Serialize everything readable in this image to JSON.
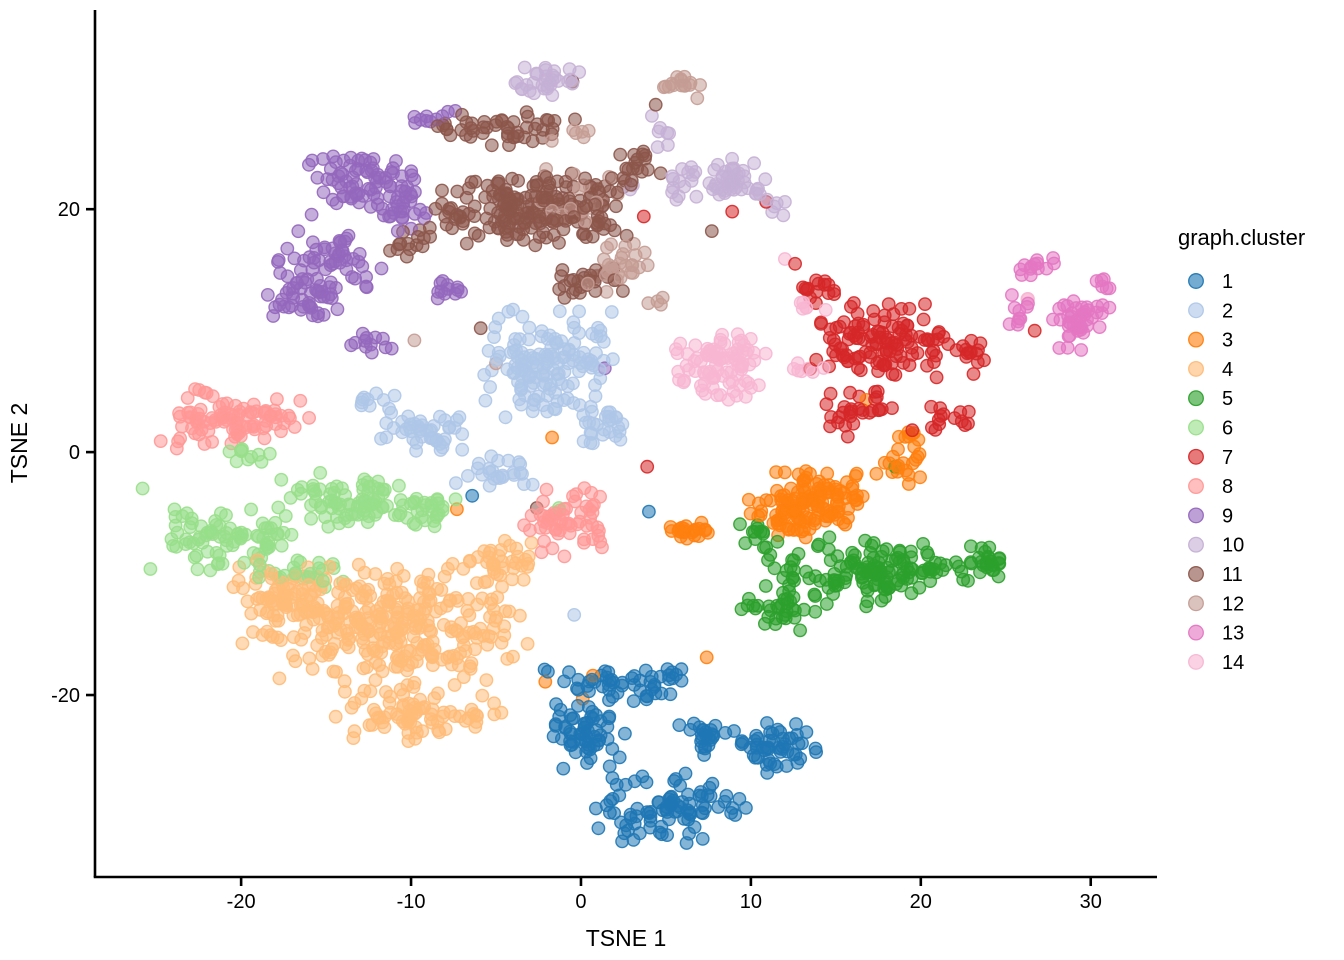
{
  "chart_data": {
    "type": "scatter",
    "title": "",
    "xlabel": "TSNE 1",
    "ylabel": "TSNE 2",
    "legend_title": "graph.cluster",
    "legend_position": "right",
    "grid": false,
    "xlim": [
      -28.6,
      33.9
    ],
    "ylim": [
      -34.9,
      36.4
    ],
    "x_ticks": [
      -20,
      -10,
      0,
      10,
      20,
      30
    ],
    "y_ticks": [
      -20,
      0,
      20
    ],
    "marker": {
      "radius": 6.2,
      "fill_opacity": 0.55,
      "stroke_opacity": 0.9,
      "stroke_width": 1.4
    },
    "series": [
      {
        "name": "1",
        "color": "#1F77B4",
        "blobs": [
          {
            "cx": 2.5,
            "cy": -19.3,
            "rx": 4.8,
            "ry": 1.8,
            "n": 55,
            "rot": 0
          },
          {
            "cx": 11.2,
            "cy": -24.3,
            "rx": 3.0,
            "ry": 2.6,
            "n": 50,
            "rot": 0
          },
          {
            "cx": 4.8,
            "cy": -29.3,
            "rx": 5.2,
            "ry": 3.0,
            "n": 90,
            "rot": 0
          },
          {
            "cx": 0.3,
            "cy": -23.5,
            "rx": 2.6,
            "ry": 3.2,
            "n": 60,
            "rot": 0
          },
          {
            "cx": 7.5,
            "cy": -23.5,
            "rx": 2.0,
            "ry": 1.6,
            "n": 25,
            "rot": 0
          }
        ],
        "outliers": [
          [
            13.8,
            -24.4
          ],
          [
            4.0,
            -4.9
          ],
          [
            -6.4,
            -3.6
          ]
        ]
      },
      {
        "name": "2",
        "color": "#AEC7E8",
        "blobs": [
          {
            "cx": -2.0,
            "cy": 7.5,
            "rx": 4.2,
            "ry": 5.5,
            "n": 150,
            "rot": 0
          },
          {
            "cx": -9.3,
            "cy": 1.6,
            "rx": 3.2,
            "ry": 2.0,
            "n": 45,
            "rot": 0
          },
          {
            "cx": -4.8,
            "cy": -1.6,
            "rx": 2.6,
            "ry": 1.4,
            "n": 25,
            "rot": 0
          },
          {
            "cx": -11.8,
            "cy": 4.3,
            "rx": 1.4,
            "ry": 1.0,
            "n": 10,
            "rot": 0
          },
          {
            "cx": 1.5,
            "cy": 2.0,
            "rx": 2.0,
            "ry": 2.0,
            "n": 25,
            "rot": 0
          }
        ],
        "outliers": [
          [
            -0.4,
            -13.4
          ]
        ]
      },
      {
        "name": "3",
        "color": "#FF7F0E",
        "blobs": [
          {
            "cx": 13.3,
            "cy": -4.3,
            "rx": 3.8,
            "ry": 3.0,
            "n": 140,
            "rot": 0
          },
          {
            "cx": 6.3,
            "cy": -6.6,
            "rx": 1.6,
            "ry": 0.9,
            "n": 22,
            "rot": 0
          },
          {
            "cx": 18.8,
            "cy": -1.2,
            "rx": 1.6,
            "ry": 1.6,
            "n": 18,
            "rot": 0
          },
          {
            "cx": 19.3,
            "cy": 1.2,
            "rx": 1.2,
            "ry": 0.9,
            "n": 8,
            "rot": 0
          }
        ],
        "outliers": [
          [
            -1.7,
            1.2
          ],
          [
            7.4,
            -16.9
          ],
          [
            -2.1,
            -18.9
          ],
          [
            0.7,
            -18.4
          ],
          [
            0.1,
            -20.3
          ],
          [
            -7.3,
            -4.7
          ],
          [
            16.8,
            4.3
          ]
        ]
      },
      {
        "name": "4",
        "color": "#FFBB78",
        "blobs": [
          {
            "cx": -11.5,
            "cy": -14.0,
            "rx": 8.8,
            "ry": 5.5,
            "n": 330,
            "rot": 0
          },
          {
            "cx": -9.5,
            "cy": -21.5,
            "rx": 5.0,
            "ry": 2.6,
            "n": 80,
            "rot": 0
          },
          {
            "cx": -17.5,
            "cy": -11.5,
            "rx": 3.5,
            "ry": 2.5,
            "n": 50,
            "rot": 0
          },
          {
            "cx": -4.5,
            "cy": -9.0,
            "rx": 2.5,
            "ry": 2.0,
            "n": 30,
            "rot": 0
          }
        ],
        "outliers": []
      },
      {
        "name": "5",
        "color": "#2CA02C",
        "blobs": [
          {
            "cx": 17.0,
            "cy": -9.8,
            "rx": 6.8,
            "ry": 3.0,
            "n": 150,
            "rot": 0
          },
          {
            "cx": 11.5,
            "cy": -13.2,
            "rx": 2.6,
            "ry": 1.6,
            "n": 30,
            "rot": 0
          },
          {
            "cx": 23.8,
            "cy": -9.0,
            "rx": 1.8,
            "ry": 2.0,
            "n": 25,
            "rot": 0
          },
          {
            "cx": 10.0,
            "cy": -7.0,
            "rx": 1.4,
            "ry": 1.2,
            "n": 12,
            "rot": 0
          }
        ],
        "outliers": [
          [
            18.5,
            -1.2
          ]
        ]
      },
      {
        "name": "6",
        "color": "#98DF8A",
        "blobs": [
          {
            "cx": -21.0,
            "cy": -7.3,
            "rx": 4.6,
            "ry": 3.0,
            "n": 85,
            "rot": 0
          },
          {
            "cx": -13.8,
            "cy": -4.2,
            "rx": 4.6,
            "ry": 2.4,
            "n": 85,
            "rot": -10
          },
          {
            "cx": -8.7,
            "cy": -5.0,
            "rx": 2.0,
            "ry": 1.6,
            "n": 25,
            "rot": 0
          },
          {
            "cx": -16.5,
            "cy": -9.8,
            "rx": 3.0,
            "ry": 1.4,
            "n": 22,
            "rot": 0
          },
          {
            "cx": -19.0,
            "cy": -0.2,
            "rx": 2.2,
            "ry": 0.8,
            "n": 10,
            "rot": 0
          }
        ],
        "outliers": [
          [
            -1.3,
            -4.6
          ],
          [
            -25.8,
            -3.0
          ]
        ]
      },
      {
        "name": "7",
        "color": "#D62728",
        "blobs": [
          {
            "cx": 17.8,
            "cy": 9.2,
            "rx": 4.6,
            "ry": 3.4,
            "n": 120,
            "rot": 0
          },
          {
            "cx": 14.2,
            "cy": 13.6,
            "rx": 2.2,
            "ry": 0.9,
            "n": 14,
            "rot": 0
          },
          {
            "cx": 16.3,
            "cy": 3.6,
            "rx": 2.6,
            "ry": 1.9,
            "n": 30,
            "rot": 25
          },
          {
            "cx": 21.8,
            "cy": 2.6,
            "rx": 1.5,
            "ry": 1.5,
            "n": 14,
            "rot": 0
          },
          {
            "cx": 22.8,
            "cy": 8.0,
            "rx": 1.2,
            "ry": 2.2,
            "n": 14,
            "rot": 0
          }
        ],
        "outliers": [
          [
            3.9,
            -1.2
          ],
          [
            3.7,
            19.4
          ],
          [
            8.9,
            19.8
          ],
          [
            10.9,
            20.6
          ],
          [
            26.7,
            10.0
          ],
          [
            19.5,
            1.8
          ],
          [
            12.6,
            15.5
          ]
        ]
      },
      {
        "name": "8",
        "color": "#FF9896",
        "blobs": [
          {
            "cx": -20.3,
            "cy": 2.4,
            "rx": 4.8,
            "ry": 2.0,
            "n": 90,
            "rot": 8
          },
          {
            "cx": -0.9,
            "cy": -5.8,
            "rx": 2.7,
            "ry": 3.4,
            "n": 60,
            "rot": 0
          },
          {
            "cx": -22.5,
            "cy": 4.8,
            "rx": 1.2,
            "ry": 0.7,
            "n": 6,
            "rot": 0
          }
        ],
        "outliers": []
      },
      {
        "name": "9",
        "color": "#9467BD",
        "blobs": [
          {
            "cx": -13.0,
            "cy": 22.3,
            "rx": 3.4,
            "ry": 3.2,
            "n": 70,
            "rot": 0
          },
          {
            "cx": -14.8,
            "cy": 15.8,
            "rx": 3.4,
            "ry": 2.6,
            "n": 55,
            "rot": 0
          },
          {
            "cx": -16.3,
            "cy": 12.5,
            "rx": 2.6,
            "ry": 2.0,
            "n": 40,
            "rot": 0
          },
          {
            "cx": -10.3,
            "cy": 20.5,
            "rx": 1.6,
            "ry": 3.4,
            "n": 30,
            "rot": 0
          },
          {
            "cx": -8.0,
            "cy": 13.5,
            "rx": 1.0,
            "ry": 1.0,
            "n": 12,
            "rot": 0
          },
          {
            "cx": -8.6,
            "cy": 27.6,
            "rx": 1.4,
            "ry": 0.8,
            "n": 10,
            "rot": 0
          },
          {
            "cx": -12.3,
            "cy": 9.0,
            "rx": 1.4,
            "ry": 1.4,
            "n": 12,
            "rot": 0
          }
        ],
        "outliers": [
          [
            1.4,
            6.9
          ]
        ]
      },
      {
        "name": "10",
        "color": "#C5B0D5",
        "blobs": [
          {
            "cx": 8.3,
            "cy": 22.3,
            "rx": 3.3,
            "ry": 2.0,
            "n": 60,
            "rot": 0
          },
          {
            "cx": -1.9,
            "cy": 30.6,
            "rx": 2.4,
            "ry": 1.5,
            "n": 32,
            "rot": 0
          },
          {
            "cx": 4.6,
            "cy": 26.3,
            "rx": 0.9,
            "ry": 1.6,
            "n": 7,
            "rot": 20
          },
          {
            "cx": 11.6,
            "cy": 20.3,
            "rx": 0.9,
            "ry": 0.9,
            "n": 6,
            "rot": 0
          },
          {
            "cx": 2.8,
            "cy": 21.7,
            "rx": 0.5,
            "ry": 0.5,
            "n": 2,
            "rot": 0
          }
        ],
        "outliers": []
      },
      {
        "name": "11",
        "color": "#8C564B",
        "blobs": [
          {
            "cx": -2.8,
            "cy": 20.0,
            "rx": 6.6,
            "ry": 3.4,
            "n": 200,
            "rot": 0
          },
          {
            "cx": -4.4,
            "cy": 26.6,
            "rx": 4.4,
            "ry": 1.6,
            "n": 48,
            "rot": 0
          },
          {
            "cx": -10.4,
            "cy": 17.2,
            "rx": 1.6,
            "ry": 1.6,
            "n": 14,
            "rot": 0
          },
          {
            "cx": 0.6,
            "cy": 14.0,
            "rx": 2.2,
            "ry": 1.6,
            "n": 26,
            "rot": 0
          },
          {
            "cx": 3.3,
            "cy": 23.3,
            "rx": 1.6,
            "ry": 2.4,
            "n": 20,
            "rot": 0
          }
        ],
        "outliers": [
          [
            7.7,
            18.2
          ],
          [
            -5.9,
            10.2
          ],
          [
            -2.6,
            -4.6
          ],
          [
            4.4,
            28.6
          ],
          [
            -0.5,
            30.5
          ]
        ]
      },
      {
        "name": "12",
        "color": "#C49C94",
        "blobs": [
          {
            "cx": 2.2,
            "cy": 15.3,
            "rx": 1.9,
            "ry": 2.4,
            "n": 30,
            "rot": -25
          },
          {
            "cx": 6.0,
            "cy": 30.2,
            "rx": 1.5,
            "ry": 1.1,
            "n": 16,
            "rot": 0
          },
          {
            "cx": 0.0,
            "cy": 21.5,
            "rx": 4.0,
            "ry": 2.6,
            "n": 16,
            "rot": 0
          },
          {
            "cx": -0.5,
            "cy": 26.0,
            "rx": 2.0,
            "ry": 1.0,
            "n": 6,
            "rot": 0
          },
          {
            "cx": 4.4,
            "cy": 12.4,
            "rx": 0.8,
            "ry": 0.6,
            "n": 4,
            "rot": 0
          }
        ],
        "outliers": [
          [
            -9.8,
            9.2
          ],
          [
            -5.0,
            7.3
          ]
        ]
      },
      {
        "name": "13",
        "color": "#E377C2",
        "blobs": [
          {
            "cx": 26.8,
            "cy": 15.2,
            "rx": 1.6,
            "ry": 0.8,
            "n": 13,
            "rot": 35
          },
          {
            "cx": 25.7,
            "cy": 11.7,
            "rx": 0.9,
            "ry": 1.7,
            "n": 10,
            "rot": 0
          },
          {
            "cx": 29.3,
            "cy": 10.6,
            "rx": 1.9,
            "ry": 3.0,
            "n": 42,
            "rot": 0
          },
          {
            "cx": 30.6,
            "cy": 13.7,
            "rx": 0.7,
            "ry": 1.0,
            "n": 6,
            "rot": 0
          }
        ],
        "outliers": []
      },
      {
        "name": "14",
        "color": "#F7B6D2",
        "blobs": [
          {
            "cx": 8.3,
            "cy": 7.2,
            "rx": 2.9,
            "ry": 3.1,
            "n": 88,
            "rot": 0
          },
          {
            "cx": 13.1,
            "cy": 6.9,
            "rx": 1.4,
            "ry": 0.5,
            "n": 7,
            "rot": 0
          },
          {
            "cx": 13.4,
            "cy": 11.8,
            "rx": 1.3,
            "ry": 0.7,
            "n": 6,
            "rot": 0
          },
          {
            "cx": 26.1,
            "cy": 12.8,
            "rx": 0.4,
            "ry": 0.4,
            "n": 2,
            "rot": 0
          }
        ],
        "outliers": [
          [
            12.0,
            15.9
          ]
        ]
      }
    ]
  }
}
